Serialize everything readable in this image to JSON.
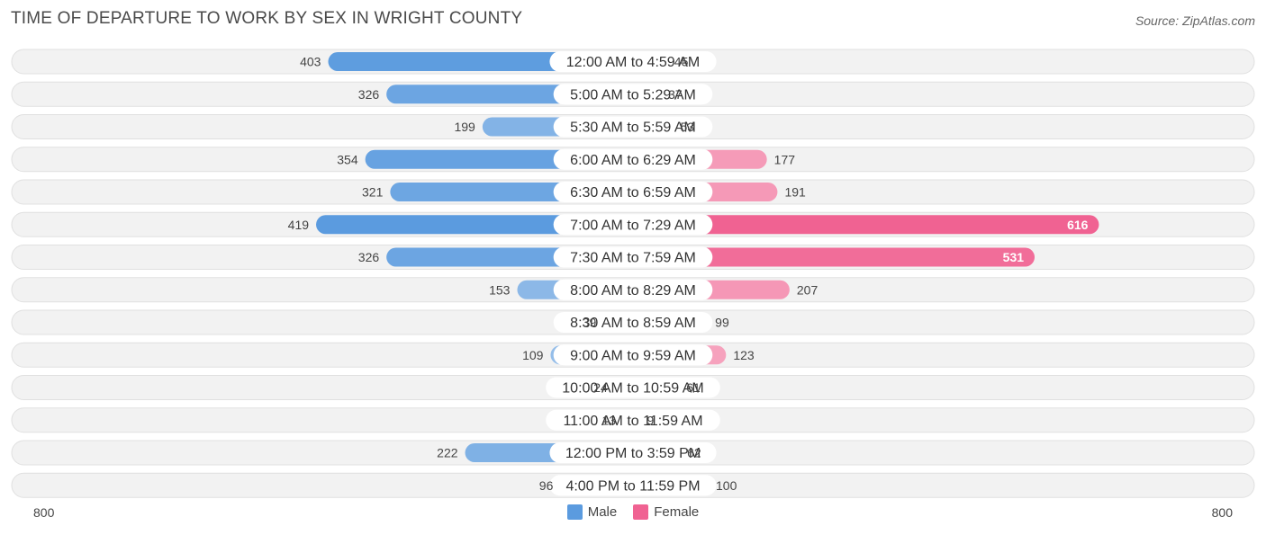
{
  "title": "TIME OF DEPARTURE TO WORK BY SEX IN WRIGHT COUNTY",
  "source": "Source: ZipAtlas.com",
  "axis": {
    "left_label": "800",
    "right_label": "800"
  },
  "legend": {
    "male_label": "Male",
    "female_label": "Female"
  },
  "colors": {
    "male_light": "#a8c9ec",
    "male_dark": "#5b9bdf",
    "female_light": "#f7b2c8",
    "female_dark": "#f06292",
    "row_bg": "#f2f2f2",
    "row_border": "#e0e0e0"
  },
  "chart_data": {
    "type": "bar",
    "orientation": "horizontal-diverging",
    "xlim": [
      -800,
      800
    ],
    "categories": [
      "12:00 AM to 4:59 AM",
      "5:00 AM to 5:29 AM",
      "5:30 AM to 5:59 AM",
      "6:00 AM to 6:29 AM",
      "6:30 AM to 6:59 AM",
      "7:00 AM to 7:29 AM",
      "7:30 AM to 7:59 AM",
      "8:00 AM to 8:29 AM",
      "8:30 AM to 8:59 AM",
      "9:00 AM to 9:59 AM",
      "10:00 AM to 10:59 AM",
      "11:00 AM to 11:59 AM",
      "12:00 PM to 3:59 PM",
      "4:00 PM to 11:59 PM"
    ],
    "series": [
      {
        "name": "Male",
        "values": [
          403,
          326,
          199,
          354,
          321,
          419,
          326,
          153,
          39,
          109,
          24,
          13,
          222,
          96
        ]
      },
      {
        "name": "Female",
        "values": [
          45,
          37,
          53,
          177,
          191,
          616,
          531,
          207,
          99,
          123,
          61,
          9,
          62,
          100
        ]
      }
    ],
    "legend_position": "bottom"
  }
}
